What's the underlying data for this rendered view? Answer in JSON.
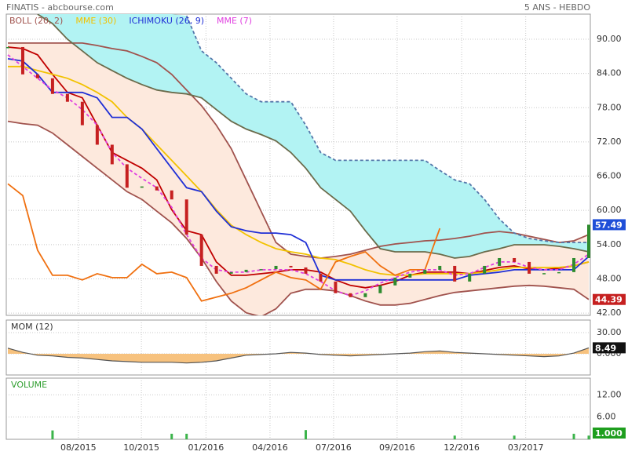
{
  "header": {
    "title": "FINATIS - abcbourse.com",
    "period": "5 ANS - HEBDO"
  },
  "chart_data": [
    {
      "type": "candlestick",
      "x": [
        0,
        3,
        6,
        9,
        12,
        15,
        18,
        21,
        24,
        27,
        30,
        33,
        36,
        39,
        42,
        45,
        48,
        51,
        54,
        57,
        60,
        63,
        66,
        69,
        72,
        75,
        78,
        81,
        84,
        87,
        90,
        93,
        96,
        99,
        102,
        105,
        108,
        111,
        114,
        117
      ],
      "xlim": [
        0,
        117
      ],
      "xticks": [
        {
          "value": 14.2,
          "label": "08/2015"
        },
        {
          "value": 26.9,
          "label": "10/2015"
        },
        {
          "value": 39.9,
          "label": "01/2016"
        },
        {
          "value": 52.8,
          "label": "04/2016"
        },
        {
          "value": 65.6,
          "label": "07/2016"
        },
        {
          "value": 78.4,
          "label": "09/2016"
        },
        {
          "value": 91.4,
          "label": "12/2016"
        },
        {
          "value": 104.3,
          "label": "03/2017"
        }
      ],
      "ylim": [
        41.6,
        94.4
      ],
      "yticks": [
        {
          "value": 42,
          "label": "42.00"
        },
        {
          "value": 48,
          "label": "48.00"
        },
        {
          "value": 54,
          "label": "54.00"
        },
        {
          "value": 60,
          "label": "60.00"
        },
        {
          "value": 66,
          "label": "66.00"
        },
        {
          "value": 72,
          "label": "72.00"
        },
        {
          "value": 78,
          "label": "78.00"
        },
        {
          "value": 84,
          "label": "84.00"
        },
        {
          "value": 90,
          "label": "90.00"
        }
      ],
      "grid": true,
      "up_color": "#2e8b2e",
      "down_color": "#c62020",
      "label_box_color": "#1f4fd8",
      "values": [
        88.63,
        83.84,
        83.15,
        80.41,
        79.04,
        74.93,
        71.51,
        68.08,
        63.97,
        64.2,
        63.5,
        61.92,
        55.75,
        50.27,
        48.9,
        49.18,
        49.59,
        49.7,
        50.27,
        50,
        48.9,
        47.53,
        45.48,
        44.79,
        45.48,
        46.85,
        48.22,
        48.9,
        49.59,
        50.27,
        47.53,
        48.9,
        50.27,
        51.64,
        50.96,
        48.9,
        49.0,
        49.18,
        51.64,
        57.49
      ],
      "indicators": [
        {
          "name": "BOLL (20, 2)",
          "color": "#a0524d",
          "lines": [
            {
              "color": "#a0524d",
              "dash": false,
              "fill": "#fde9dd",
              "values": [
                89.32,
                89.32,
                89.32,
                89.32,
                89.32,
                89.32,
                88.9,
                88.36,
                87.95,
                86.99,
                85.89,
                83.84,
                81.1,
                78.36,
                74.93,
                70.82,
                65.34,
                59.86,
                54.38,
                52.33,
                51.92,
                51.64,
                51.92,
                52.33,
                53.01,
                53.7,
                54.11,
                54.38,
                54.66,
                54.79,
                55.07,
                55.48,
                56.03,
                56.3,
                56.03,
                55.48,
                54.93,
                54.38,
                54.66,
                55.75
              ]
            },
            {
              "color": "#a0524d",
              "dash": false,
              "label_box_color": "#c62020",
              "values": [
                75.62,
                75.21,
                74.93,
                73.56,
                71.51,
                69.45,
                67.4,
                65.34,
                63.29,
                61.92,
                59.86,
                57.81,
                55.07,
                51.64,
                47.53,
                44.11,
                42.05,
                41.37,
                42.74,
                45.48,
                46.16,
                46.16,
                45.89,
                45.07,
                44.11,
                43.42,
                43.42,
                43.7,
                44.38,
                45.07,
                45.62,
                45.89,
                46.16,
                46.44,
                46.71,
                46.85,
                46.71,
                46.44,
                46.16,
                44.39
              ]
            },
            {
              "color": "#c00000",
              "dash": false,
              "values": [
                88.63,
                88.36,
                87.26,
                83.84,
                80.68,
                79.73,
                74.93,
                70.14,
                68.77,
                67.4,
                65.34,
                60.14,
                56.44,
                55.75,
                50.96,
                48.63,
                48.63,
                48.9,
                49.18,
                49.59,
                49.59,
                49.18,
                47.81,
                46.85,
                46.44,
                46.85,
                47.53,
                48.63,
                49.18,
                49.18,
                49.18,
                48.9,
                49.45,
                50,
                50.27,
                49.73,
                49.59,
                49.86,
                50.27,
                50.96
              ]
            }
          ]
        },
        {
          "name": "MME (30)",
          "color": "#f2c200",
          "lines": [
            {
              "color": "#f2c200",
              "dash": false,
              "values": [
                85.21,
                85.21,
                84.52,
                83.84,
                83.15,
                82.05,
                80.68,
                79.04,
                76.3,
                74.25,
                71.51,
                68.77,
                66.03,
                63.29,
                60.14,
                57.4,
                55.75,
                54.38,
                53.29,
                52.74,
                52.33,
                51.64,
                51.37,
                50.55,
                49.59,
                48.9,
                48.63,
                48.63,
                48.9,
                48.9,
                48.9,
                48.9,
                49.18,
                49.59,
                50,
                50,
                50,
                50,
                50.27,
                50.96
              ]
            }
          ]
        },
        {
          "name": "ICHIMOKU (26, 9)",
          "color": "#1f2fd6",
          "lines": [
            {
              "color": "#1f2fd6",
              "dash": false,
              "values": [
                86.58,
                86.16,
                83.84,
                80.68,
                80.68,
                80.68,
                79.73,
                76.3,
                76.3,
                74.25,
                70.82,
                67.4,
                63.97,
                63.29,
                59.86,
                57.12,
                56.44,
                56.03,
                56.03,
                55.75,
                54.38,
                48.63,
                47.81,
                47.81,
                47.81,
                47.81,
                47.81,
                47.81,
                47.81,
                47.81,
                47.81,
                48.63,
                48.9,
                49.18,
                49.59,
                49.59,
                49.59,
                49.59,
                49.59,
                51.92
              ]
            },
            {
              "color": "#6b6b4b",
              "dash": false,
              "fill": "#b2f3f3",
              "values": [
                null,
                null,
                94.38,
                92.74,
                90,
                87.95,
                85.89,
                84.52,
                83.15,
                82.05,
                81.1,
                80.68,
                80.41,
                79.73,
                77.67,
                75.62,
                74.25,
                73.29,
                72.19,
                70.14,
                67.4,
                63.97,
                61.92,
                59.86,
                56.44,
                53.29,
                52.74,
                52.74,
                52.74,
                52.33,
                51.64,
                51.92,
                52.74,
                53.29,
                53.97,
                53.97,
                53.97,
                53.7,
                53.29,
                52.74
              ]
            },
            {
              "color": "#5577aa",
              "dash": true,
              "values": [
                null,
                null,
                null,
                null,
                null,
                null,
                null,
                null,
                null,
                null,
                null,
                null,
                94.11,
                87.95,
                85.89,
                83.15,
                80.41,
                79.04,
                79.04,
                79.04,
                74.93,
                70.14,
                68.77,
                68.77,
                68.77,
                68.77,
                68.77,
                68.77,
                68.77,
                66.99,
                65.34,
                64.66,
                61.92,
                58.49,
                56.03,
                55.07,
                54.66,
                54.38,
                54.38,
                54.38
              ]
            },
            {
              "color": "#f07010",
              "dash": false,
              "values": [
                64.66,
                62.6,
                53.01,
                48.63,
                48.63,
                47.81,
                48.9,
                48.22,
                48.22,
                50.55,
                48.9,
                49.18,
                48.22,
                44.11,
                44.79,
                45.48,
                46.44,
                47.81,
                49.18,
                48.22,
                47.81,
                46.16,
                50.96,
                51.92,
                52.74,
                50.27,
                48.63,
                49.59,
                49.59,
                56.85,
                null,
                null,
                null,
                null,
                null,
                null,
                null,
                null,
                null,
                null
              ]
            }
          ]
        },
        {
          "name": "MME (7)",
          "color": "#e040e0",
          "lines": [
            {
              "color": "#e040e0",
              "dash": true,
              "values": [
                87.26,
                85.21,
                83.15,
                81.1,
                79.73,
                77.67,
                74.93,
                70.14,
                67.4,
                65.62,
                63.97,
                60.55,
                55.75,
                51.64,
                49.59,
                49.18,
                49.18,
                49.59,
                49.59,
                49.59,
                48.9,
                47.53,
                45.89,
                45.07,
                45.89,
                47.26,
                48.22,
                49.18,
                49.59,
                49.59,
                48.63,
                48.9,
                50,
                50.96,
                50.96,
                50,
                49.59,
                49.59,
                50.55,
                52.33
              ]
            }
          ]
        }
      ]
    },
    {
      "type": "area",
      "title": "MOM (12)",
      "x": [
        0,
        3,
        6,
        9,
        12,
        15,
        18,
        21,
        24,
        27,
        30,
        33,
        36,
        39,
        42,
        45,
        48,
        51,
        54,
        57,
        60,
        63,
        66,
        69,
        72,
        75,
        78,
        81,
        84,
        87,
        90,
        93,
        96,
        99,
        102,
        105,
        108,
        111,
        114,
        117
      ],
      "xlim": [
        0,
        117
      ],
      "ylim": [
        -30,
        47.8
      ],
      "yticks": [
        {
          "value": 0,
          "label": "0.000"
        },
        {
          "value": 30,
          "label": "30.00"
        }
      ],
      "color": "#555555",
      "fill": "#f7c27e",
      "label_box_color": "#111111",
      "values": [
        8,
        2,
        -2,
        -3,
        -5,
        -6,
        -8,
        -10,
        -11,
        -12,
        -12,
        -12,
        -13,
        -12,
        -10,
        -6,
        -2,
        -1,
        0,
        2,
        1,
        -1,
        -2,
        -3,
        -2,
        -1,
        0,
        1,
        3,
        4,
        2,
        1,
        0,
        -1,
        -2,
        -3,
        -4,
        -3,
        1,
        8.49
      ]
    },
    {
      "type": "bar",
      "title": "VOLUME",
      "x": [
        0,
        3,
        6,
        9,
        12,
        15,
        18,
        21,
        24,
        27,
        30,
        33,
        36,
        39,
        42,
        45,
        48,
        51,
        54,
        57,
        60,
        63,
        66,
        69,
        72,
        75,
        78,
        81,
        84,
        87,
        90,
        93,
        96,
        99,
        102,
        105,
        108,
        111,
        114,
        117
      ],
      "xlim": [
        0,
        117
      ],
      "ylim": [
        0,
        16.5
      ],
      "yticks": [
        {
          "value": 6,
          "label": "6.00"
        },
        {
          "value": 12,
          "label": "12.00"
        }
      ],
      "color": "#3cb44b",
      "label_box_color": "#1e9e1e",
      "values": [
        0,
        0,
        0,
        2.4,
        0,
        0,
        0,
        0,
        0,
        0,
        0,
        1.5,
        1.5,
        0,
        0,
        0,
        0,
        0,
        0,
        0,
        2.5,
        0,
        0,
        0,
        0,
        0,
        0,
        0,
        0,
        0,
        1,
        0,
        0,
        0,
        1,
        0,
        0,
        0,
        1.5,
        1
      ],
      "value_labels": [
        null,
        null,
        null,
        null,
        null,
        null,
        null,
        null,
        null,
        null,
        null,
        null,
        null,
        null,
        null,
        null,
        null,
        null,
        null,
        null,
        null,
        null,
        null,
        null,
        null,
        null,
        null,
        null,
        null,
        null,
        null,
        null,
        null,
        null,
        null,
        null,
        null,
        null,
        null,
        "1.000"
      ]
    }
  ]
}
